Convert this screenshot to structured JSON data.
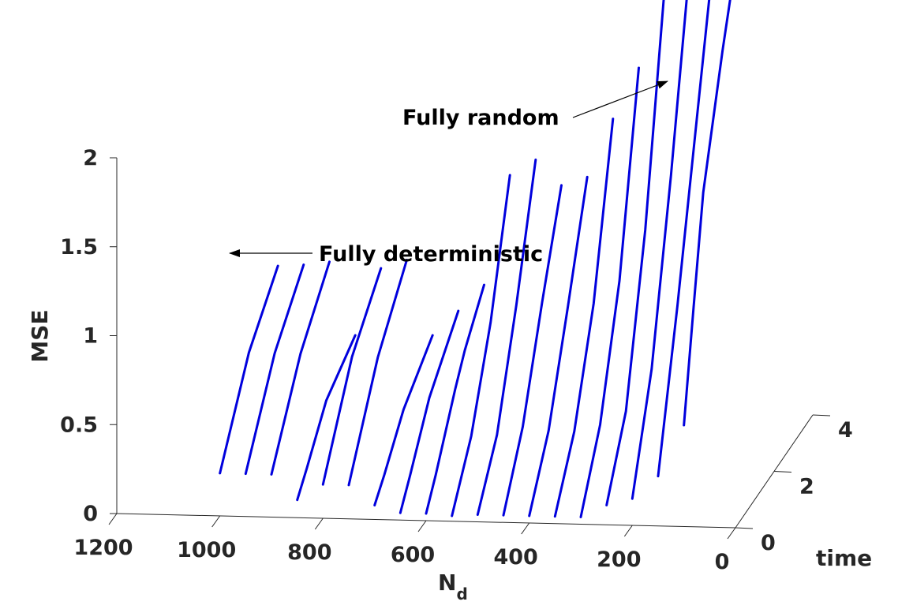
{
  "chart_data": {
    "type": "line",
    "projection": "3d",
    "series_color": "#0000dd",
    "xlabel": "N",
    "xlabel_sub": "d",
    "ylabel": "time",
    "zlabel": "MSE",
    "xlim": [
      0,
      1200
    ],
    "ylim": [
      0,
      4
    ],
    "zlim": [
      0,
      2
    ],
    "x_ticks": [
      0,
      200,
      400,
      600,
      800,
      1000,
      1200
    ],
    "y_ticks": [
      0,
      2,
      4
    ],
    "z_ticks": [
      0,
      0.5,
      1,
      1.5,
      2
    ],
    "z_tick_labels": [
      "0",
      "0.5",
      "1",
      "1.5",
      "2"
    ],
    "series": [
      {
        "x": 1000,
        "points": [
          [
            0,
            0.24
          ],
          [
            1.5,
            0.68
          ],
          [
            3,
            0.93
          ]
        ]
      },
      {
        "x": 950,
        "points": [
          [
            0,
            0.24
          ],
          [
            1.5,
            0.68
          ],
          [
            3,
            0.94
          ]
        ]
      },
      {
        "x": 900,
        "points": [
          [
            0,
            0.24
          ],
          [
            1.5,
            0.68
          ],
          [
            3,
            0.96
          ]
        ]
      },
      {
        "x": 850,
        "points": [
          [
            0,
            0.1
          ],
          [
            0.5,
            0.2
          ],
          [
            1.5,
            0.42
          ],
          [
            3,
            0.55
          ]
        ]
      },
      {
        "x": 800,
        "points": [
          [
            0,
            0.19
          ],
          [
            1.5,
            0.67
          ],
          [
            3,
            0.93
          ]
        ]
      },
      {
        "x": 750,
        "points": [
          [
            0,
            0.19
          ],
          [
            1.5,
            0.67
          ],
          [
            3,
            0.98
          ]
        ]
      },
      {
        "x": 700,
        "points": [
          [
            0,
            0.08
          ],
          [
            0.5,
            0.17
          ],
          [
            1.5,
            0.38
          ],
          [
            3,
            0.56
          ]
        ]
      },
      {
        "x": 650,
        "points": [
          [
            0,
            0.04
          ],
          [
            0.5,
            0.17
          ],
          [
            1.5,
            0.45
          ],
          [
            3,
            0.7
          ]
        ]
      },
      {
        "x": 600,
        "points": [
          [
            0,
            0.04
          ],
          [
            0.5,
            0.18
          ],
          [
            1.5,
            0.5
          ],
          [
            2,
            0.64
          ],
          [
            3,
            0.85
          ]
        ]
      },
      {
        "x": 550,
        "points": [
          [
            0,
            0.03
          ],
          [
            1,
            0.32
          ],
          [
            2,
            0.8
          ],
          [
            3,
            1.47
          ]
        ]
      },
      {
        "x": 500,
        "points": [
          [
            0,
            0.04
          ],
          [
            1,
            0.33
          ],
          [
            2,
            0.9
          ],
          [
            3,
            1.56
          ]
        ]
      },
      {
        "x": 450,
        "points": [
          [
            0,
            0.04
          ],
          [
            1,
            0.38
          ],
          [
            2,
            0.92
          ],
          [
            3,
            1.42
          ]
        ]
      },
      {
        "x": 400,
        "points": [
          [
            0,
            0.04
          ],
          [
            1,
            0.36
          ],
          [
            2,
            0.9
          ],
          [
            3,
            1.47
          ]
        ]
      },
      {
        "x": 350,
        "points": [
          [
            0,
            0.04
          ],
          [
            1,
            0.36
          ],
          [
            2,
            0.92
          ],
          [
            3,
            1.8
          ]
        ]
      },
      {
        "x": 300,
        "points": [
          [
            0,
            0.04
          ],
          [
            1,
            0.4
          ],
          [
            2,
            1.05
          ],
          [
            3,
            2.09
          ]
        ]
      },
      {
        "x": 250,
        "points": [
          [
            0,
            0.11
          ],
          [
            1,
            0.48
          ],
          [
            2,
            1.34
          ],
          [
            3,
            2.54
          ]
        ]
      },
      {
        "x": 200,
        "points": [
          [
            0,
            0.15
          ],
          [
            1,
            0.72
          ],
          [
            2,
            1.65
          ],
          [
            3,
            2.71
          ]
        ]
      },
      {
        "x": 150,
        "points": [
          [
            0,
            0.28
          ],
          [
            1,
            1.08
          ],
          [
            2,
            1.97
          ],
          [
            3,
            2.86
          ]
        ]
      },
      {
        "x": 100,
        "points": [
          [
            0,
            0.57
          ],
          [
            0.5,
            1.15
          ],
          [
            1,
            1.72
          ],
          [
            2,
            2.36
          ],
          [
            3,
            2.93
          ]
        ]
      }
    ],
    "annotations": [
      {
        "text": "Fully random"
      },
      {
        "text": "Fully deterministic"
      }
    ]
  }
}
